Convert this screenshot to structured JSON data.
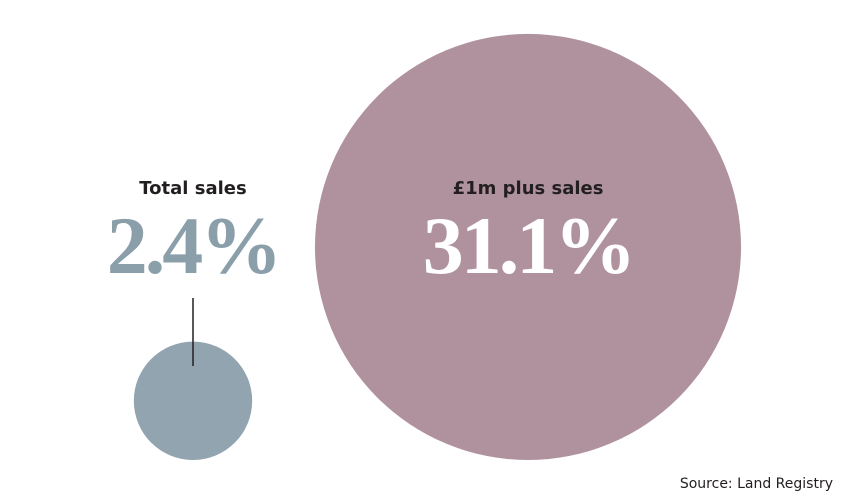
{
  "chart_data": {
    "type": "bubble",
    "categories": [
      "Total sales",
      "£1m plus sales"
    ],
    "values": [
      2.4,
      31.1
    ],
    "value_labels": [
      "2.4%",
      "31.1%"
    ],
    "colors": [
      "#91a4b0",
      "#b0929f"
    ],
    "source": "Source: Land Registry"
  }
}
